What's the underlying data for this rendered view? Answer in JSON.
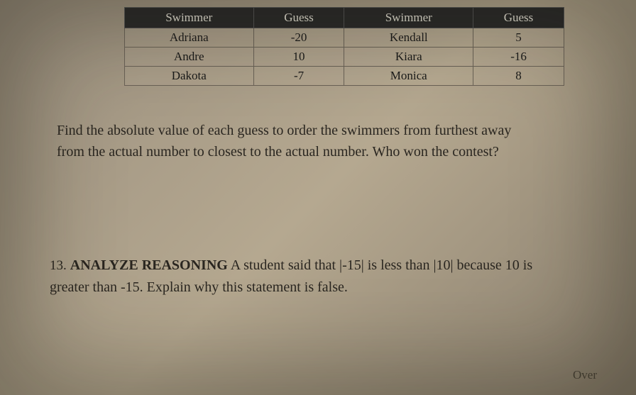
{
  "table": {
    "headers": [
      "Swimmer",
      "Guess",
      "Swimmer",
      "Guess"
    ],
    "rows": [
      [
        "Adriana",
        "-20",
        "Kendall",
        "5"
      ],
      [
        "Andre",
        "10",
        "Kiara",
        "-16"
      ],
      [
        "Dakota",
        "-7",
        "Monica",
        "8"
      ]
    ],
    "header_bg": "#2a2a2a",
    "header_fg": "#e8e4d8",
    "border_color": "#6b6358",
    "cell_fontsize": 17
  },
  "q1": {
    "text_line1": "Find the absolute value of each guess to order the swimmers from furthest away",
    "text_line2": "from the actual number to closest to the actual number.  Who won the contest?"
  },
  "q2": {
    "number": "13.",
    "label": "ANALYZE REASONING",
    "text_part1": " A student said that |-15| is less than |10| because 10 is",
    "text_line2": "greater than -15. Explain why this statement is false."
  },
  "footer": {
    "over": "Over"
  },
  "page_style": {
    "background_tone": "#a59882",
    "text_color": "#2a2620",
    "font_family": "serif",
    "body_fontsize": 20
  }
}
